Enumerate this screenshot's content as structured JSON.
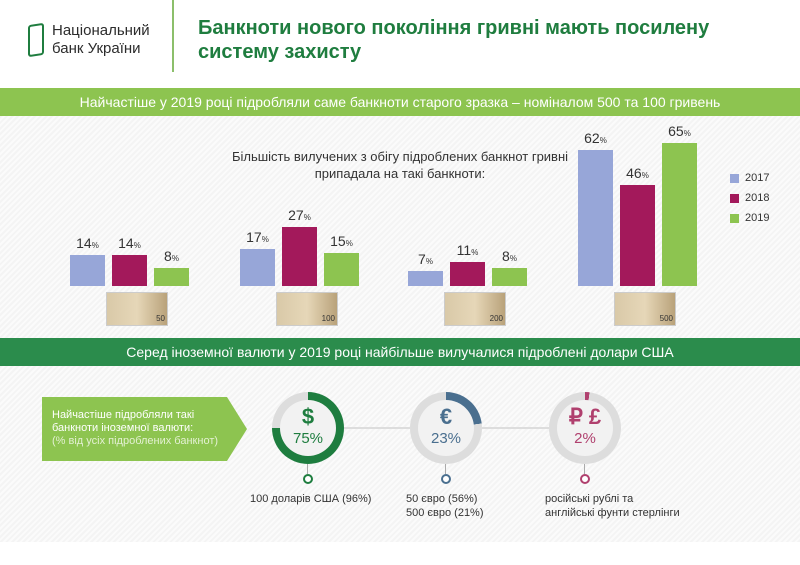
{
  "header": {
    "logo_line1": "Національний",
    "logo_line2": "банк України",
    "title": "Банкноти нового покоління гривні мають посилену систему захисту"
  },
  "banner1": "Найчастіше у 2019 році підробляли саме банкноти старого зразка – номіналом 500 та 100 гривень",
  "banner2": "Серед іноземної валюти у 2019 році найбільше вилучалися підроблені долари США",
  "chart_data": {
    "type": "bar",
    "title": "Більшість вилучених з обігу підроблених банкнот гривні припадала на такі банкноти:",
    "categories": [
      "50",
      "100",
      "200",
      "500"
    ],
    "series": [
      {
        "name": "2017",
        "color": "#97a6d8",
        "values": [
          14,
          17,
          7,
          62
        ]
      },
      {
        "name": "2018",
        "color": "#a3195b",
        "values": [
          14,
          27,
          11,
          46
        ]
      },
      {
        "name": "2019",
        "color": "#8dc450",
        "values": [
          8,
          15,
          8,
          65
        ]
      }
    ],
    "unit": "%",
    "ylim": [
      0,
      65
    ],
    "legend": "right"
  },
  "foreign": {
    "intro_line": "Найчастіше підробляли такі банкноти іноземної валюти:",
    "intro_note": "(% від усіх підроблених банкнот)",
    "items": [
      {
        "symbol": "$",
        "percent": "75%",
        "value": 75,
        "color": "#1e7d3f",
        "label1": "100 доларів США (96%)",
        "label2": ""
      },
      {
        "symbol": "€",
        "percent": "23%",
        "value": 23,
        "color": "#4a6f8f",
        "label1": "50 євро (56%)",
        "label2": "500 євро (21%)"
      },
      {
        "symbol": "₽ £",
        "percent": "2%",
        "value": 2,
        "color": "#b0406e",
        "label1": "російські рублі та",
        "label2": "англійські фунти стерлінги"
      }
    ]
  }
}
